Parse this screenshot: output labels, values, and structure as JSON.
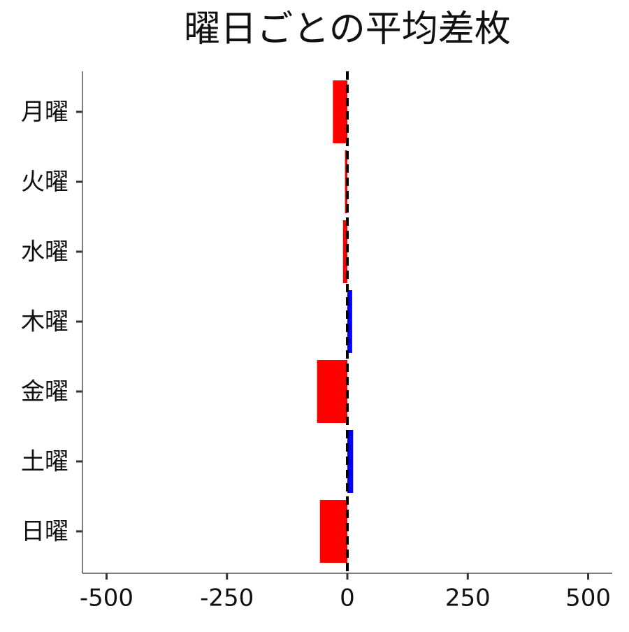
{
  "chart_data": {
    "type": "barh",
    "title": "曜日ごとの平均差枚",
    "categories": [
      "月曜",
      "火曜",
      "水曜",
      "木曜",
      "金曜",
      "土曜",
      "日曜"
    ],
    "values": [
      -30,
      -5,
      -9,
      10,
      -63,
      12,
      -57
    ],
    "colors": [
      "#ff0000",
      "#ff0000",
      "#ff0000",
      "#0000ff",
      "#ff0000",
      "#0000ff",
      "#ff0000"
    ],
    "xlim": [
      -550,
      550
    ],
    "xticks": [
      -500,
      -250,
      0,
      250,
      500
    ],
    "reference_line": 0,
    "grid": false
  }
}
